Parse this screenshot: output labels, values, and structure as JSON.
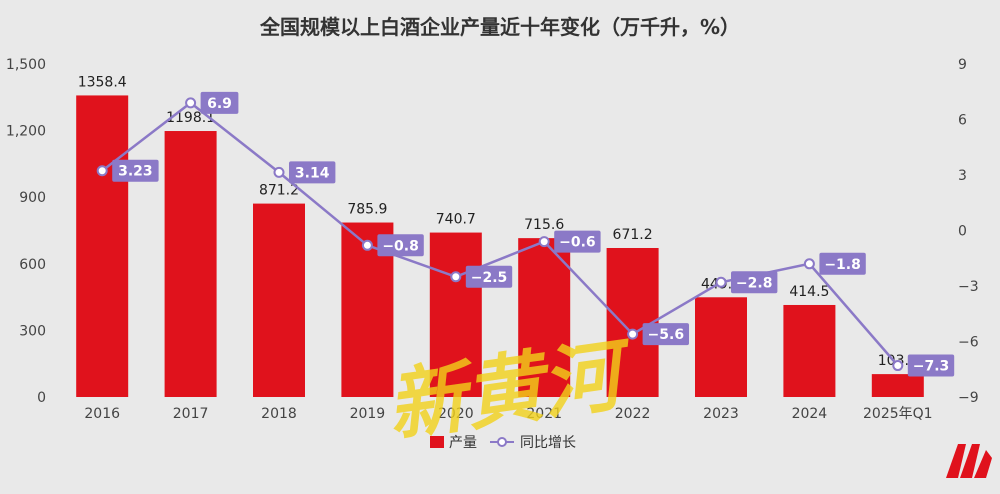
{
  "chart_data": {
    "type": "bar",
    "title": "全国规模以上白酒企业产量近十年变化（万千升，%）",
    "categories": [
      "2016",
      "2017",
      "2018",
      "2019",
      "2020",
      "2021",
      "2022",
      "2023",
      "2024",
      "2025年Q1"
    ],
    "series": [
      {
        "name": "产量",
        "type": "bar",
        "axis": "left",
        "values": [
          1358.4,
          1198.1,
          871.2,
          785.9,
          740.7,
          715.6,
          671.2,
          449.2,
          414.5,
          103.1
        ],
        "labels": [
          "1358.4",
          "1198.1",
          "871.2",
          "785.9",
          "740.7",
          "715.6",
          "671.2",
          "449.2",
          "414.5",
          "103.1"
        ],
        "color": "#e0121c"
      },
      {
        "name": "同比增长",
        "type": "line",
        "axis": "right",
        "values": [
          3.23,
          6.9,
          3.14,
          -0.8,
          -2.5,
          -0.6,
          -5.6,
          -2.8,
          -1.8,
          -7.3
        ],
        "labels": [
          "3.23",
          "6.9",
          "3.14",
          "−0.8",
          "−2.5",
          "−0.6",
          "−5.6",
          "−2.8",
          "−1.8",
          "−7.3"
        ],
        "color": "#8b79c7"
      }
    ],
    "y_left": {
      "ylim": [
        0,
        1500
      ],
      "ticks": [
        "0",
        "300",
        "600",
        "900",
        "1,200",
        "1,500"
      ]
    },
    "y_right": {
      "ylim": [
        -9,
        9
      ],
      "ticks": [
        "−9",
        "−6",
        "−3",
        "0",
        "3",
        "6",
        "9"
      ]
    },
    "grid": false,
    "legend_position": "bottom-center"
  },
  "watermark": {
    "text": "新黄河",
    "color": "#f2d21a"
  },
  "logo": {
    "color": "#e0121c"
  }
}
